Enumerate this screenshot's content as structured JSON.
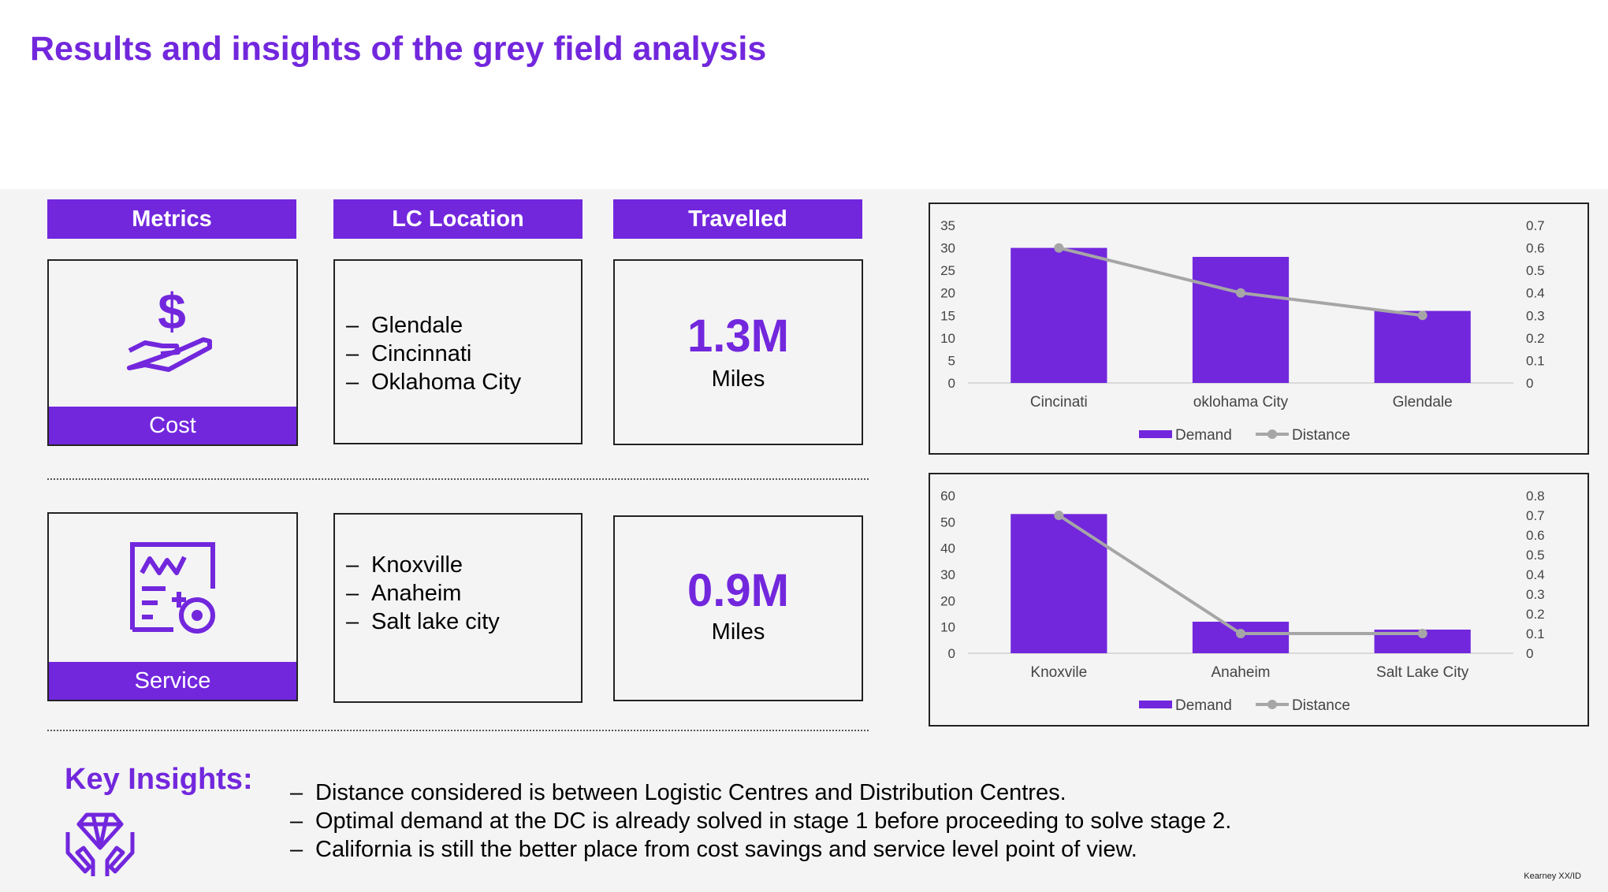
{
  "title": "Results and insights of the grey field analysis",
  "headers": {
    "metrics": "Metrics",
    "lc_location": "LC Location",
    "travelled": "Travelled"
  },
  "rows": [
    {
      "metric": "Cost",
      "icon": "hand-dollar-icon",
      "locations": [
        "Glendale",
        "Cincinnati",
        "Oklahoma City"
      ],
      "value": "1.3M",
      "unit": "Miles"
    },
    {
      "metric": "Service",
      "icon": "service-chart-gear-icon",
      "locations": [
        "Knoxville",
        "Anaheim",
        "Salt lake city"
      ],
      "value": "0.9M",
      "unit": "Miles"
    }
  ],
  "key_insights": {
    "title": "Key Insights:",
    "icon": "hands-diamond-icon",
    "items": [
      "Distance considered is between Logistic Centres and Distribution Centres.",
      "Optimal demand at the DC is already solved in stage 1 before proceeding to solve stage 2.",
      "California is still the better place from cost savings and service level point of view."
    ]
  },
  "footer": "Kearney XX/ID",
  "colors": {
    "accent": "#7227DD",
    "line": "#A6A6A6",
    "panel": "#F4F4F4"
  },
  "chart_data": [
    {
      "type": "bar",
      "categories": [
        "Cincinati",
        "oklohama City",
        "Glendale"
      ],
      "series": [
        {
          "name": "Demand",
          "type": "bar",
          "axis": "left",
          "values": [
            30,
            28,
            16
          ]
        },
        {
          "name": "Distance",
          "type": "line",
          "axis": "right",
          "values": [
            0.6,
            0.4,
            0.3
          ]
        }
      ],
      "ylim": [
        0,
        35
      ],
      "yticks": [
        "0",
        "5",
        "10",
        "15",
        "20",
        "25",
        "30",
        "35"
      ],
      "y2lim": [
        0,
        0.7
      ],
      "y2ticks": [
        "0",
        "0.1",
        "0.2",
        "0.3",
        "0.4",
        "0.5",
        "0.6",
        "0.7"
      ],
      "legend": "bottom"
    },
    {
      "type": "bar",
      "categories": [
        "Knoxvile",
        "Anaheim",
        "Salt Lake City"
      ],
      "series": [
        {
          "name": "Demand",
          "type": "bar",
          "axis": "left",
          "values": [
            53,
            12,
            9
          ]
        },
        {
          "name": "Distance",
          "type": "line",
          "axis": "right",
          "values": [
            0.7,
            0.1,
            0.1
          ]
        }
      ],
      "ylim": [
        0,
        60
      ],
      "yticks": [
        "0",
        "10",
        "20",
        "30",
        "40",
        "50",
        "60"
      ],
      "y2lim": [
        0,
        0.8
      ],
      "y2ticks": [
        "0",
        "0.1",
        "0.2",
        "0.3",
        "0.4",
        "0.5",
        "0.6",
        "0.7",
        "0.8"
      ],
      "legend": "bottom"
    }
  ]
}
